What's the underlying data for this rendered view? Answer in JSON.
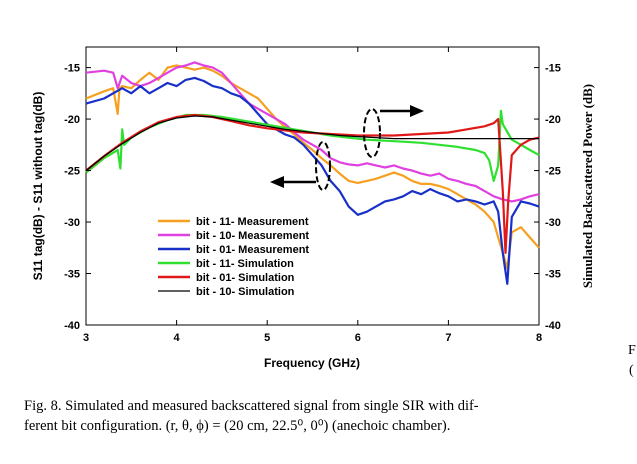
{
  "chart_data": {
    "type": "line",
    "xlabel": "Frequency (GHz)",
    "ylabel_left": "S11 tag(dB) - S11 without tag(dB)",
    "ylabel_right": "Simulated Backscattered Power (dB)",
    "xlim": [
      3,
      8
    ],
    "ylim": [
      -40,
      -13
    ],
    "x_ticks": [
      "3",
      "4",
      "5",
      "6",
      "7",
      "8"
    ],
    "y_ticks": [
      "-15",
      "-20",
      "-25",
      "-30",
      "-35",
      "-40"
    ],
    "grid": false,
    "legend_position": "lower-left",
    "series": [
      {
        "name": "bit - 11- Measurement",
        "color": "#f5a020",
        "x": [
          3.0,
          3.2,
          3.3,
          3.35,
          3.37,
          3.4,
          3.5,
          3.6,
          3.7,
          3.8,
          3.9,
          4.0,
          4.1,
          4.2,
          4.3,
          4.4,
          4.5,
          4.6,
          4.7,
          4.8,
          4.9,
          5.0,
          5.1,
          5.2,
          5.3,
          5.4,
          5.5,
          5.6,
          5.7,
          5.8,
          5.9,
          6.0,
          6.1,
          6.2,
          6.3,
          6.4,
          6.5,
          6.6,
          6.7,
          6.8,
          6.9,
          7.0,
          7.1,
          7.2,
          7.3,
          7.4,
          7.5,
          7.55,
          7.6,
          7.65,
          7.7,
          7.8,
          7.9,
          8.0
        ],
        "y": [
          -18.0,
          -17.3,
          -17.0,
          -19.5,
          -17.0,
          -16.8,
          -17.0,
          -16.2,
          -15.5,
          -16.2,
          -15.0,
          -14.8,
          -15.0,
          -15.2,
          -15.0,
          -15.3,
          -15.8,
          -16.5,
          -17.0,
          -17.5,
          -18.0,
          -19.0,
          -20.0,
          -20.8,
          -21.5,
          -22.3,
          -23.0,
          -23.8,
          -24.5,
          -25.3,
          -26.0,
          -26.2,
          -26.0,
          -25.8,
          -25.5,
          -25.2,
          -25.5,
          -26.0,
          -26.3,
          -26.3,
          -26.5,
          -26.8,
          -27.3,
          -27.8,
          -28.3,
          -29.0,
          -30.0,
          -31.5,
          -33.0,
          -34.5,
          -31.0,
          -30.5,
          -31.5,
          -32.5
        ]
      },
      {
        "name": "bit - 10- Measurement",
        "color": "#e040e0",
        "x": [
          3.0,
          3.2,
          3.3,
          3.35,
          3.4,
          3.5,
          3.6,
          3.7,
          3.8,
          3.9,
          4.0,
          4.1,
          4.2,
          4.3,
          4.4,
          4.5,
          4.6,
          4.7,
          4.8,
          4.9,
          5.0,
          5.1,
          5.2,
          5.3,
          5.4,
          5.5,
          5.6,
          5.7,
          5.8,
          5.9,
          6.0,
          6.1,
          6.2,
          6.3,
          6.4,
          6.5,
          6.6,
          6.7,
          6.8,
          6.9,
          7.0,
          7.1,
          7.2,
          7.3,
          7.4,
          7.5,
          7.6,
          7.7,
          7.8,
          7.9,
          8.0
        ],
        "y": [
          -15.5,
          -15.3,
          -15.5,
          -17.0,
          -15.8,
          -16.5,
          -16.8,
          -16.5,
          -16.0,
          -15.5,
          -15.0,
          -14.8,
          -14.5,
          -14.8,
          -15.0,
          -15.5,
          -16.5,
          -17.5,
          -18.5,
          -19.0,
          -19.5,
          -20.0,
          -20.5,
          -21.3,
          -22.0,
          -22.5,
          -23.0,
          -23.8,
          -24.2,
          -24.4,
          -24.5,
          -24.3,
          -24.5,
          -24.7,
          -24.5,
          -24.8,
          -25.0,
          -25.3,
          -25.5,
          -25.3,
          -25.8,
          -26.0,
          -26.3,
          -26.5,
          -27.0,
          -27.5,
          -27.8,
          -28.0,
          -27.8,
          -27.5,
          -27.3
        ]
      },
      {
        "name": "bit - 01- Measurement",
        "color": "#1830c8",
        "x": [
          3.0,
          3.2,
          3.3,
          3.4,
          3.5,
          3.6,
          3.7,
          3.8,
          3.9,
          4.0,
          4.1,
          4.2,
          4.3,
          4.4,
          4.5,
          4.6,
          4.7,
          4.8,
          4.9,
          5.0,
          5.1,
          5.2,
          5.3,
          5.4,
          5.5,
          5.6,
          5.7,
          5.8,
          5.9,
          6.0,
          6.1,
          6.2,
          6.3,
          6.4,
          6.5,
          6.6,
          6.7,
          6.8,
          6.9,
          7.0,
          7.1,
          7.2,
          7.3,
          7.4,
          7.5,
          7.55,
          7.6,
          7.65,
          7.7,
          7.8,
          7.9,
          8.0
        ],
        "y": [
          -18.5,
          -18.0,
          -17.5,
          -17.0,
          -17.5,
          -16.8,
          -17.5,
          -17.0,
          -16.5,
          -16.8,
          -16.2,
          -16.0,
          -16.3,
          -16.8,
          -17.0,
          -17.5,
          -17.8,
          -18.5,
          -19.5,
          -20.5,
          -21.0,
          -21.5,
          -21.8,
          -22.5,
          -23.5,
          -24.5,
          -26.0,
          -27.0,
          -28.5,
          -29.3,
          -29.0,
          -28.5,
          -28.0,
          -27.8,
          -27.5,
          -27.0,
          -27.3,
          -26.8,
          -27.2,
          -27.5,
          -28.0,
          -27.8,
          -28.0,
          -28.3,
          -28.0,
          -29.0,
          -33.0,
          -36.0,
          -29.5,
          -28.0,
          -28.2,
          -28.5
        ]
      },
      {
        "name": "bit - 11- Simulation",
        "color": "#30e030",
        "x": [
          3.0,
          3.2,
          3.35,
          3.38,
          3.4,
          3.42,
          3.5,
          3.7,
          3.9,
          4.1,
          4.3,
          4.5,
          4.7,
          4.9,
          5.1,
          5.3,
          5.5,
          5.7,
          5.9,
          6.1,
          6.3,
          6.5,
          6.7,
          6.9,
          7.1,
          7.3,
          7.4,
          7.45,
          7.5,
          7.55,
          7.58,
          7.6,
          7.7,
          7.8,
          7.9,
          8.0
        ],
        "y": [
          -25.2,
          -23.8,
          -23.0,
          -24.8,
          -21.0,
          -22.5,
          -21.8,
          -20.8,
          -20.1,
          -19.6,
          -19.6,
          -19.8,
          -20.1,
          -20.4,
          -20.7,
          -21.0,
          -21.3,
          -21.6,
          -21.8,
          -22.0,
          -22.1,
          -22.2,
          -22.3,
          -22.5,
          -22.7,
          -23.0,
          -23.3,
          -24.0,
          -26.0,
          -24.5,
          -19.2,
          -20.5,
          -22.0,
          -22.5,
          -23.0,
          -23.5
        ]
      },
      {
        "name": "bit - 01- Simulation",
        "color": "#e01818",
        "x": [
          3.0,
          3.2,
          3.4,
          3.6,
          3.8,
          4.0,
          4.2,
          4.4,
          4.6,
          4.8,
          5.0,
          5.2,
          5.4,
          5.6,
          5.8,
          6.0,
          6.2,
          6.4,
          6.6,
          6.8,
          7.0,
          7.2,
          7.4,
          7.5,
          7.55,
          7.6,
          7.63,
          7.66,
          7.7,
          7.8,
          7.9,
          8.0
        ],
        "y": [
          -25.0,
          -23.6,
          -22.3,
          -21.2,
          -20.3,
          -19.8,
          -19.6,
          -19.8,
          -20.2,
          -20.6,
          -20.9,
          -21.1,
          -21.3,
          -21.4,
          -21.5,
          -21.6,
          -21.6,
          -21.6,
          -21.5,
          -21.4,
          -21.3,
          -21.0,
          -20.7,
          -20.4,
          -20.0,
          -27.0,
          -33.0,
          -28.0,
          -23.5,
          -22.5,
          -22.0,
          -21.8
        ]
      },
      {
        "name": "bit - 10- Simulation",
        "color": "#000000",
        "x": [
          3.0,
          3.2,
          3.4,
          3.6,
          3.8,
          4.0,
          4.2,
          4.4,
          4.6,
          4.8,
          5.0,
          5.2,
          5.4,
          5.6,
          5.8,
          6.0,
          6.2,
          6.4,
          6.6,
          6.8,
          7.0,
          7.2,
          7.4,
          7.6,
          7.8,
          8.0
        ],
        "y": [
          -25.0,
          -23.6,
          -22.4,
          -21.3,
          -20.4,
          -19.9,
          -19.7,
          -19.8,
          -20.1,
          -20.4,
          -20.7,
          -21.0,
          -21.2,
          -21.4,
          -21.6,
          -21.7,
          -21.8,
          -21.9,
          -21.9,
          -21.9,
          -21.9,
          -21.9,
          -21.9,
          -21.9,
          -21.9,
          -21.9
        ]
      }
    ]
  },
  "caption": {
    "line1": "Fig. 8.   Simulated and measured backscattered signal from single SIR with dif-",
    "line2": "ferent bit configuration. (r, θ, ϕ) = (20 cm, 22.5⁰, 0⁰) (anechoic chamber)."
  },
  "fragment": {
    "f_letter": "F",
    "paren": "("
  }
}
